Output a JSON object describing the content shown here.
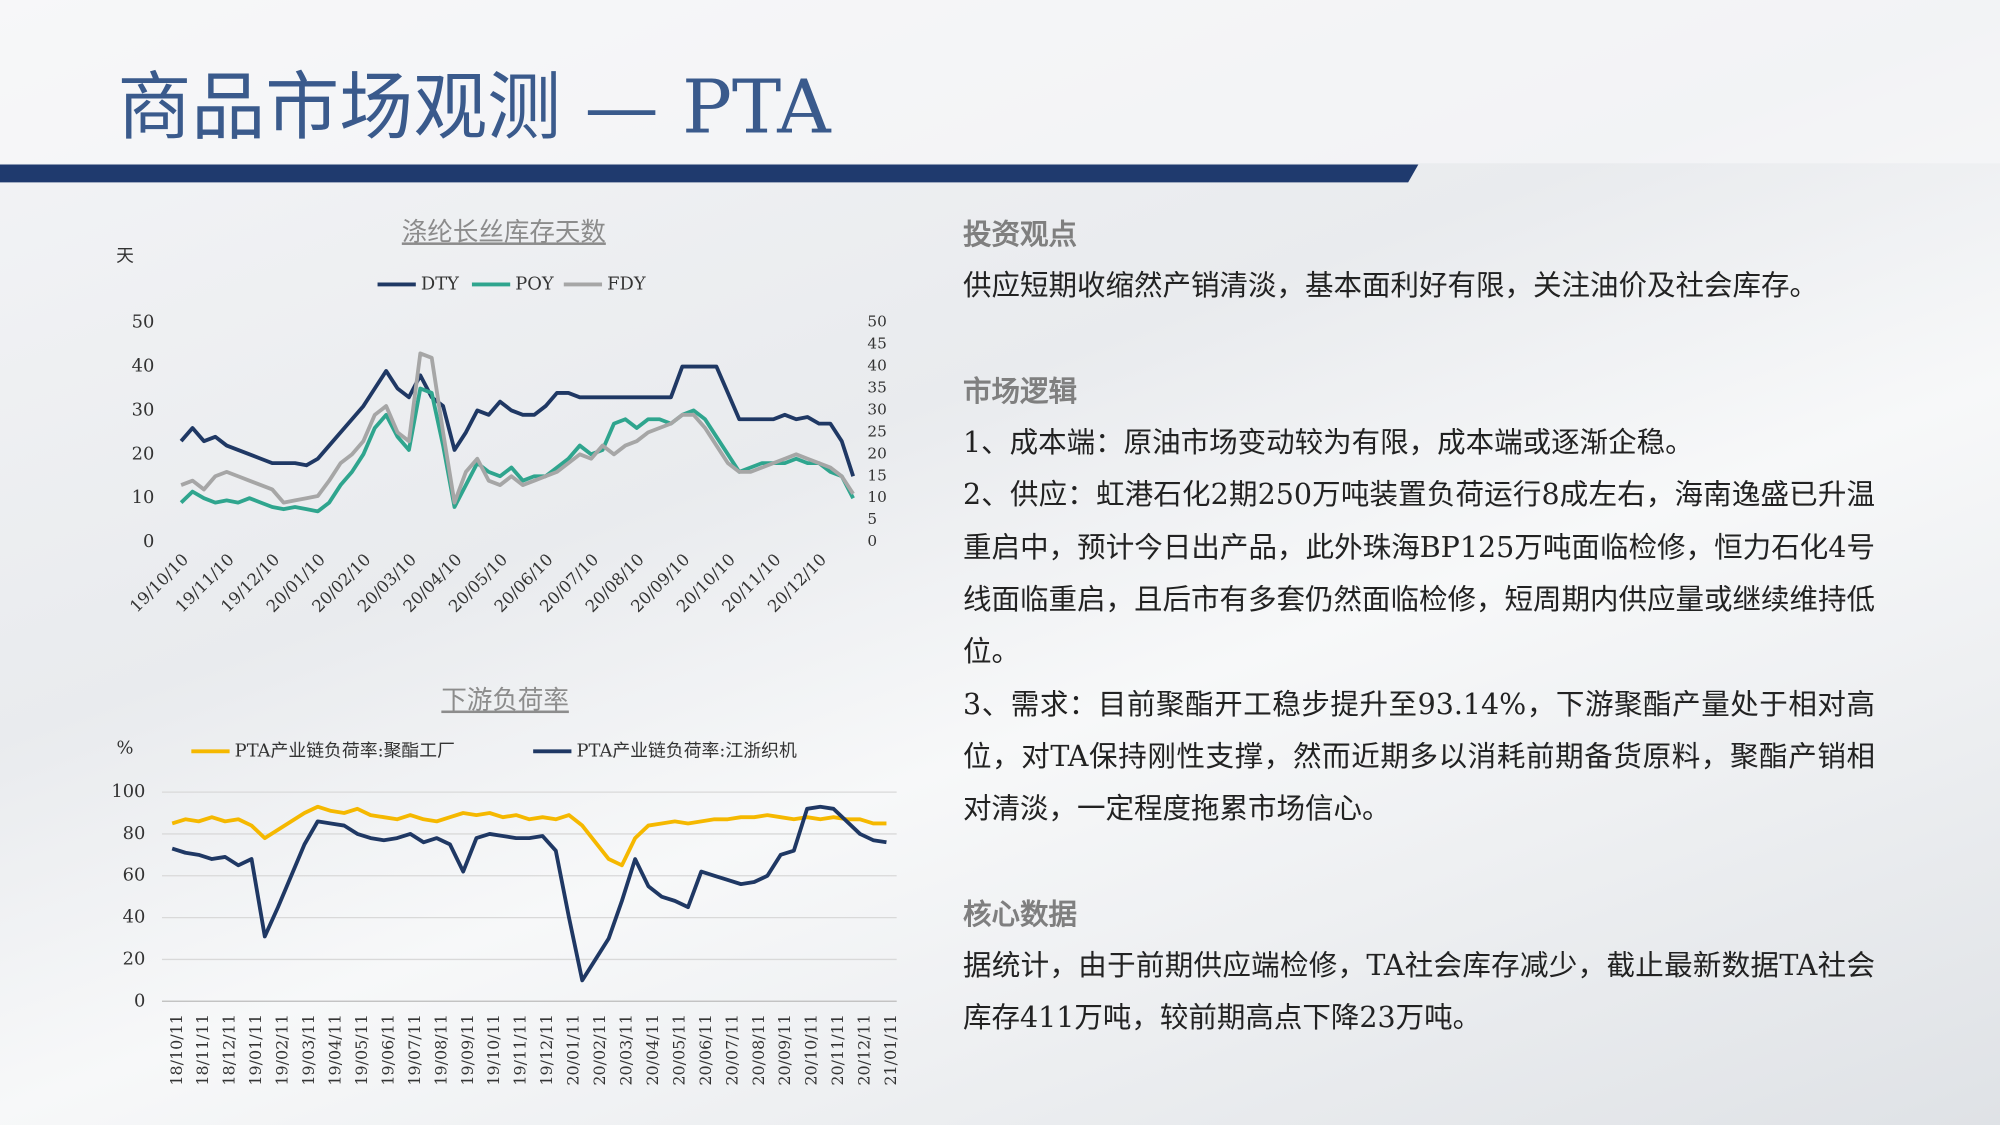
{
  "header": {
    "title": "商品市场观测 — PTA"
  },
  "chart_data": [
    {
      "type": "line",
      "title": "涤纶长丝库存天数",
      "y_label": "天",
      "legend": "top",
      "grid": false,
      "categories": [
        "19/10/10",
        null,
        null,
        null,
        "19/11/10",
        null,
        null,
        null,
        "19/12/10",
        null,
        null,
        null,
        "20/01/10",
        null,
        null,
        null,
        "20/02/10",
        null,
        null,
        null,
        "20/03/10",
        null,
        null,
        null,
        "20/04/10",
        null,
        null,
        null,
        "20/05/10",
        null,
        null,
        null,
        "20/06/10",
        null,
        null,
        null,
        "20/07/10",
        null,
        null,
        null,
        "20/08/10",
        null,
        null,
        null,
        "20/09/10",
        null,
        null,
        null,
        "20/10/10",
        null,
        null,
        null,
        "20/11/10",
        null,
        null,
        null,
        "20/12/10",
        null,
        null,
        null
      ],
      "series": [
        {
          "name": "DTY",
          "color": "#1f3864",
          "values": [
            23,
            26,
            23,
            24,
            22,
            21,
            20,
            19,
            18,
            18,
            18,
            17.5,
            19,
            22,
            25,
            28,
            31,
            35,
            39,
            35,
            33,
            38,
            33,
            31,
            21,
            25,
            30,
            29,
            32,
            30,
            29,
            29,
            31,
            34,
            34,
            33,
            33,
            33,
            33,
            33,
            33,
            33,
            33,
            33,
            40,
            40,
            40,
            40,
            34,
            28,
            28,
            28,
            28,
            29,
            28,
            28.5,
            27,
            27,
            23,
            15
          ]
        },
        {
          "name": "POY",
          "color": "#2fa58e",
          "values": [
            9,
            11.5,
            10,
            9,
            9.5,
            9,
            10,
            9,
            8,
            7.5,
            8,
            7.5,
            7,
            9,
            13,
            16,
            20,
            26,
            29,
            24,
            21,
            35,
            34,
            22,
            8,
            13,
            18,
            16,
            15,
            17,
            14,
            15,
            15,
            17,
            19,
            22,
            20,
            21,
            27,
            28,
            26,
            28,
            28,
            27,
            29,
            30,
            28,
            24,
            20,
            16,
            17,
            18,
            18,
            18,
            19,
            18,
            18,
            16,
            15,
            10
          ]
        },
        {
          "name": "FDY",
          "color": "#a6a6a6",
          "values": [
            13,
            14,
            12,
            15,
            16,
            15,
            14,
            13,
            12,
            9,
            9.5,
            10,
            10.5,
            14,
            18,
            20,
            23,
            29,
            31,
            25,
            23,
            43,
            42,
            25,
            9,
            16,
            19,
            14,
            13,
            15,
            13,
            14,
            15,
            16,
            18,
            20,
            19,
            22,
            20,
            22,
            23,
            25,
            26,
            27,
            29,
            29,
            26,
            22,
            18,
            16,
            16,
            17,
            18,
            19,
            20,
            19,
            18,
            17,
            15,
            11
          ]
        }
      ],
      "ylim": [
        0,
        50
      ],
      "yticks": [
        0,
        10,
        20,
        30,
        40,
        50
      ],
      "y2lim": [
        0,
        50
      ],
      "y2ticks": [
        0,
        5,
        10,
        15,
        20,
        25,
        30,
        35,
        40,
        45,
        50
      ]
    },
    {
      "type": "line",
      "title": "下游负荷率",
      "y_label": "%",
      "legend": "top",
      "grid": true,
      "categories": [
        "18/10/11",
        null,
        "18/11/11",
        null,
        "18/12/11",
        null,
        "19/01/11",
        null,
        "19/02/11",
        null,
        "19/03/11",
        null,
        "19/04/11",
        null,
        "19/05/11",
        null,
        "19/06/11",
        null,
        "19/07/11",
        null,
        "19/08/11",
        null,
        "19/09/11",
        null,
        "19/10/11",
        null,
        "19/11/11",
        null,
        "19/12/11",
        null,
        "20/01/11",
        null,
        "20/02/11",
        null,
        "20/03/11",
        null,
        "20/04/11",
        null,
        "20/05/11",
        null,
        "20/06/11",
        null,
        "20/07/11",
        null,
        "20/08/11",
        null,
        "20/09/11",
        null,
        "20/10/11",
        null,
        "20/11/11",
        null,
        "20/12/11",
        null,
        "21/01/11"
      ],
      "series": [
        {
          "name": "PTA产业链负荷率:聚酯工厂",
          "color": "#f5b800",
          "values": [
            85,
            87,
            86,
            88,
            86,
            87,
            84,
            78,
            82,
            86,
            90,
            93,
            91,
            90,
            92,
            89,
            88,
            87,
            89,
            87,
            86,
            88,
            90,
            89,
            90,
            88,
            89,
            87,
            88,
            87,
            89,
            84,
            76,
            68,
            65,
            78,
            84,
            85,
            86,
            85,
            86,
            87,
            87,
            88,
            88,
            89,
            88,
            87,
            88,
            87,
            88,
            87,
            87,
            85,
            85
          ]
        },
        {
          "name": "PTA产业链负荷率:江浙织机",
          "color": "#1f3864",
          "values": [
            73,
            71,
            70,
            68,
            69,
            65,
            68,
            31,
            45,
            60,
            75,
            86,
            85,
            84,
            80,
            78,
            77,
            78,
            80,
            76,
            78,
            75,
            62,
            78,
            80,
            79,
            78,
            78,
            79,
            72,
            40,
            10,
            20,
            30,
            48,
            68,
            55,
            50,
            48,
            45,
            62,
            60,
            58,
            56,
            57,
            60,
            70,
            72,
            92,
            93,
            92,
            86,
            80,
            77,
            76
          ]
        }
      ],
      "ylim": [
        0,
        100
      ],
      "yticks": [
        0,
        20,
        40,
        60,
        80,
        100
      ]
    }
  ],
  "panel": {
    "sections": [
      {
        "heading": "投资观点",
        "paragraphs": [
          "供应短期收缩然产销清淡，基本面利好有限，关注油价及社会库存。"
        ]
      },
      {
        "heading": "市场逻辑",
        "paragraphs": [
          "1、成本端：原油市场变动较为有限，成本端或逐渐企稳。",
          "2、供应：虹港石化2期250万吨装置负荷运行8成左右，海南逸盛已升温重启中，预计今日出产品，此外珠海BP125万吨面临检修，恒力石化4号线面临重启，且后市有多套仍然面临检修，短周期内供应量或继续维持低位。",
          "3、需求：目前聚酯开工稳步提升至93.14%，下游聚酯产量处于相对高位，对TA保持刚性支撑，然而近期多以消耗前期备货原料，聚酯产销相对清淡，一定程度拖累市场信心。"
        ]
      },
      {
        "heading": "核心数据",
        "paragraphs": [
          "据统计，由于前期供应端检修，TA社会库存减少，截止最新数据TA社会库存411万吨，较前期高点下降23万吨。"
        ]
      }
    ]
  }
}
